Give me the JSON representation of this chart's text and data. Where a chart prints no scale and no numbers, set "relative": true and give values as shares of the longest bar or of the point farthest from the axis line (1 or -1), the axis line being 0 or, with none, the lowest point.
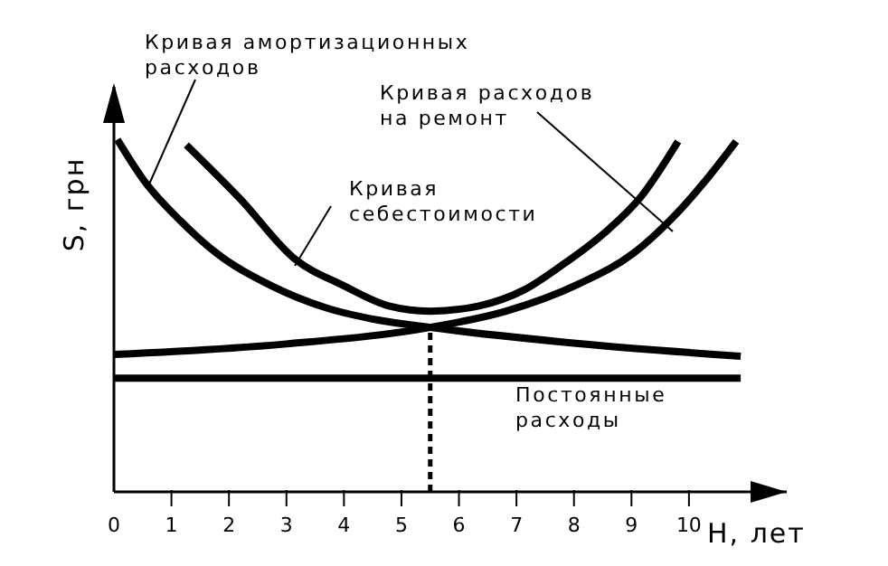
{
  "chart_data": {
    "type": "line",
    "relative": true,
    "xlabel": "Н, лет",
    "ylabel": "S, грн",
    "xlim": [
      0,
      11.7
    ],
    "xticks": [
      0,
      1,
      2,
      3,
      4,
      5,
      6,
      7,
      8,
      9,
      10
    ],
    "marker": "none",
    "line_style": "solid",
    "ref_lines": [
      {
        "axis": "x",
        "value": 5.5,
        "line_style": "dashed",
        "color": "#000000"
      }
    ],
    "series": [
      {
        "name": "Кривая амортизационных расходов",
        "color": "#000000",
        "x": [
          0.06,
          0.53,
          1.16,
          1.79,
          2.74,
          3.68,
          4.62,
          5.5,
          8.08,
          10.9
        ],
        "values": [
          1.0,
          0.882,
          0.769,
          0.677,
          0.585,
          0.523,
          0.487,
          0.467,
          0.421,
          0.385
        ]
      },
      {
        "name": "Кривая расходов на ремонт",
        "color": "#000000",
        "x": [
          0,
          3,
          5.5,
          6.82,
          8.08,
          9.03,
          9.72,
          10.28,
          10.82
        ],
        "values": [
          0.39,
          0.42,
          0.467,
          0.513,
          0.59,
          0.677,
          0.779,
          0.882,
          0.995
        ]
      },
      {
        "name": "Кривая себестоимости",
        "color": "#000000",
        "x": [
          1.26,
          2.2,
          3.14,
          4.0,
          4.78,
          5.5,
          6.35,
          7.14,
          7.77,
          8.55,
          9.18,
          9.81
        ],
        "values": [
          0.985,
          0.831,
          0.662,
          0.585,
          0.528,
          0.513,
          0.528,
          0.574,
          0.641,
          0.738,
          0.841,
          0.995
        ]
      },
      {
        "name": "Постоянные расходы",
        "color": "#000000",
        "x": [
          0,
          10.9
        ],
        "values": [
          0.323,
          0.323
        ]
      }
    ]
  }
}
